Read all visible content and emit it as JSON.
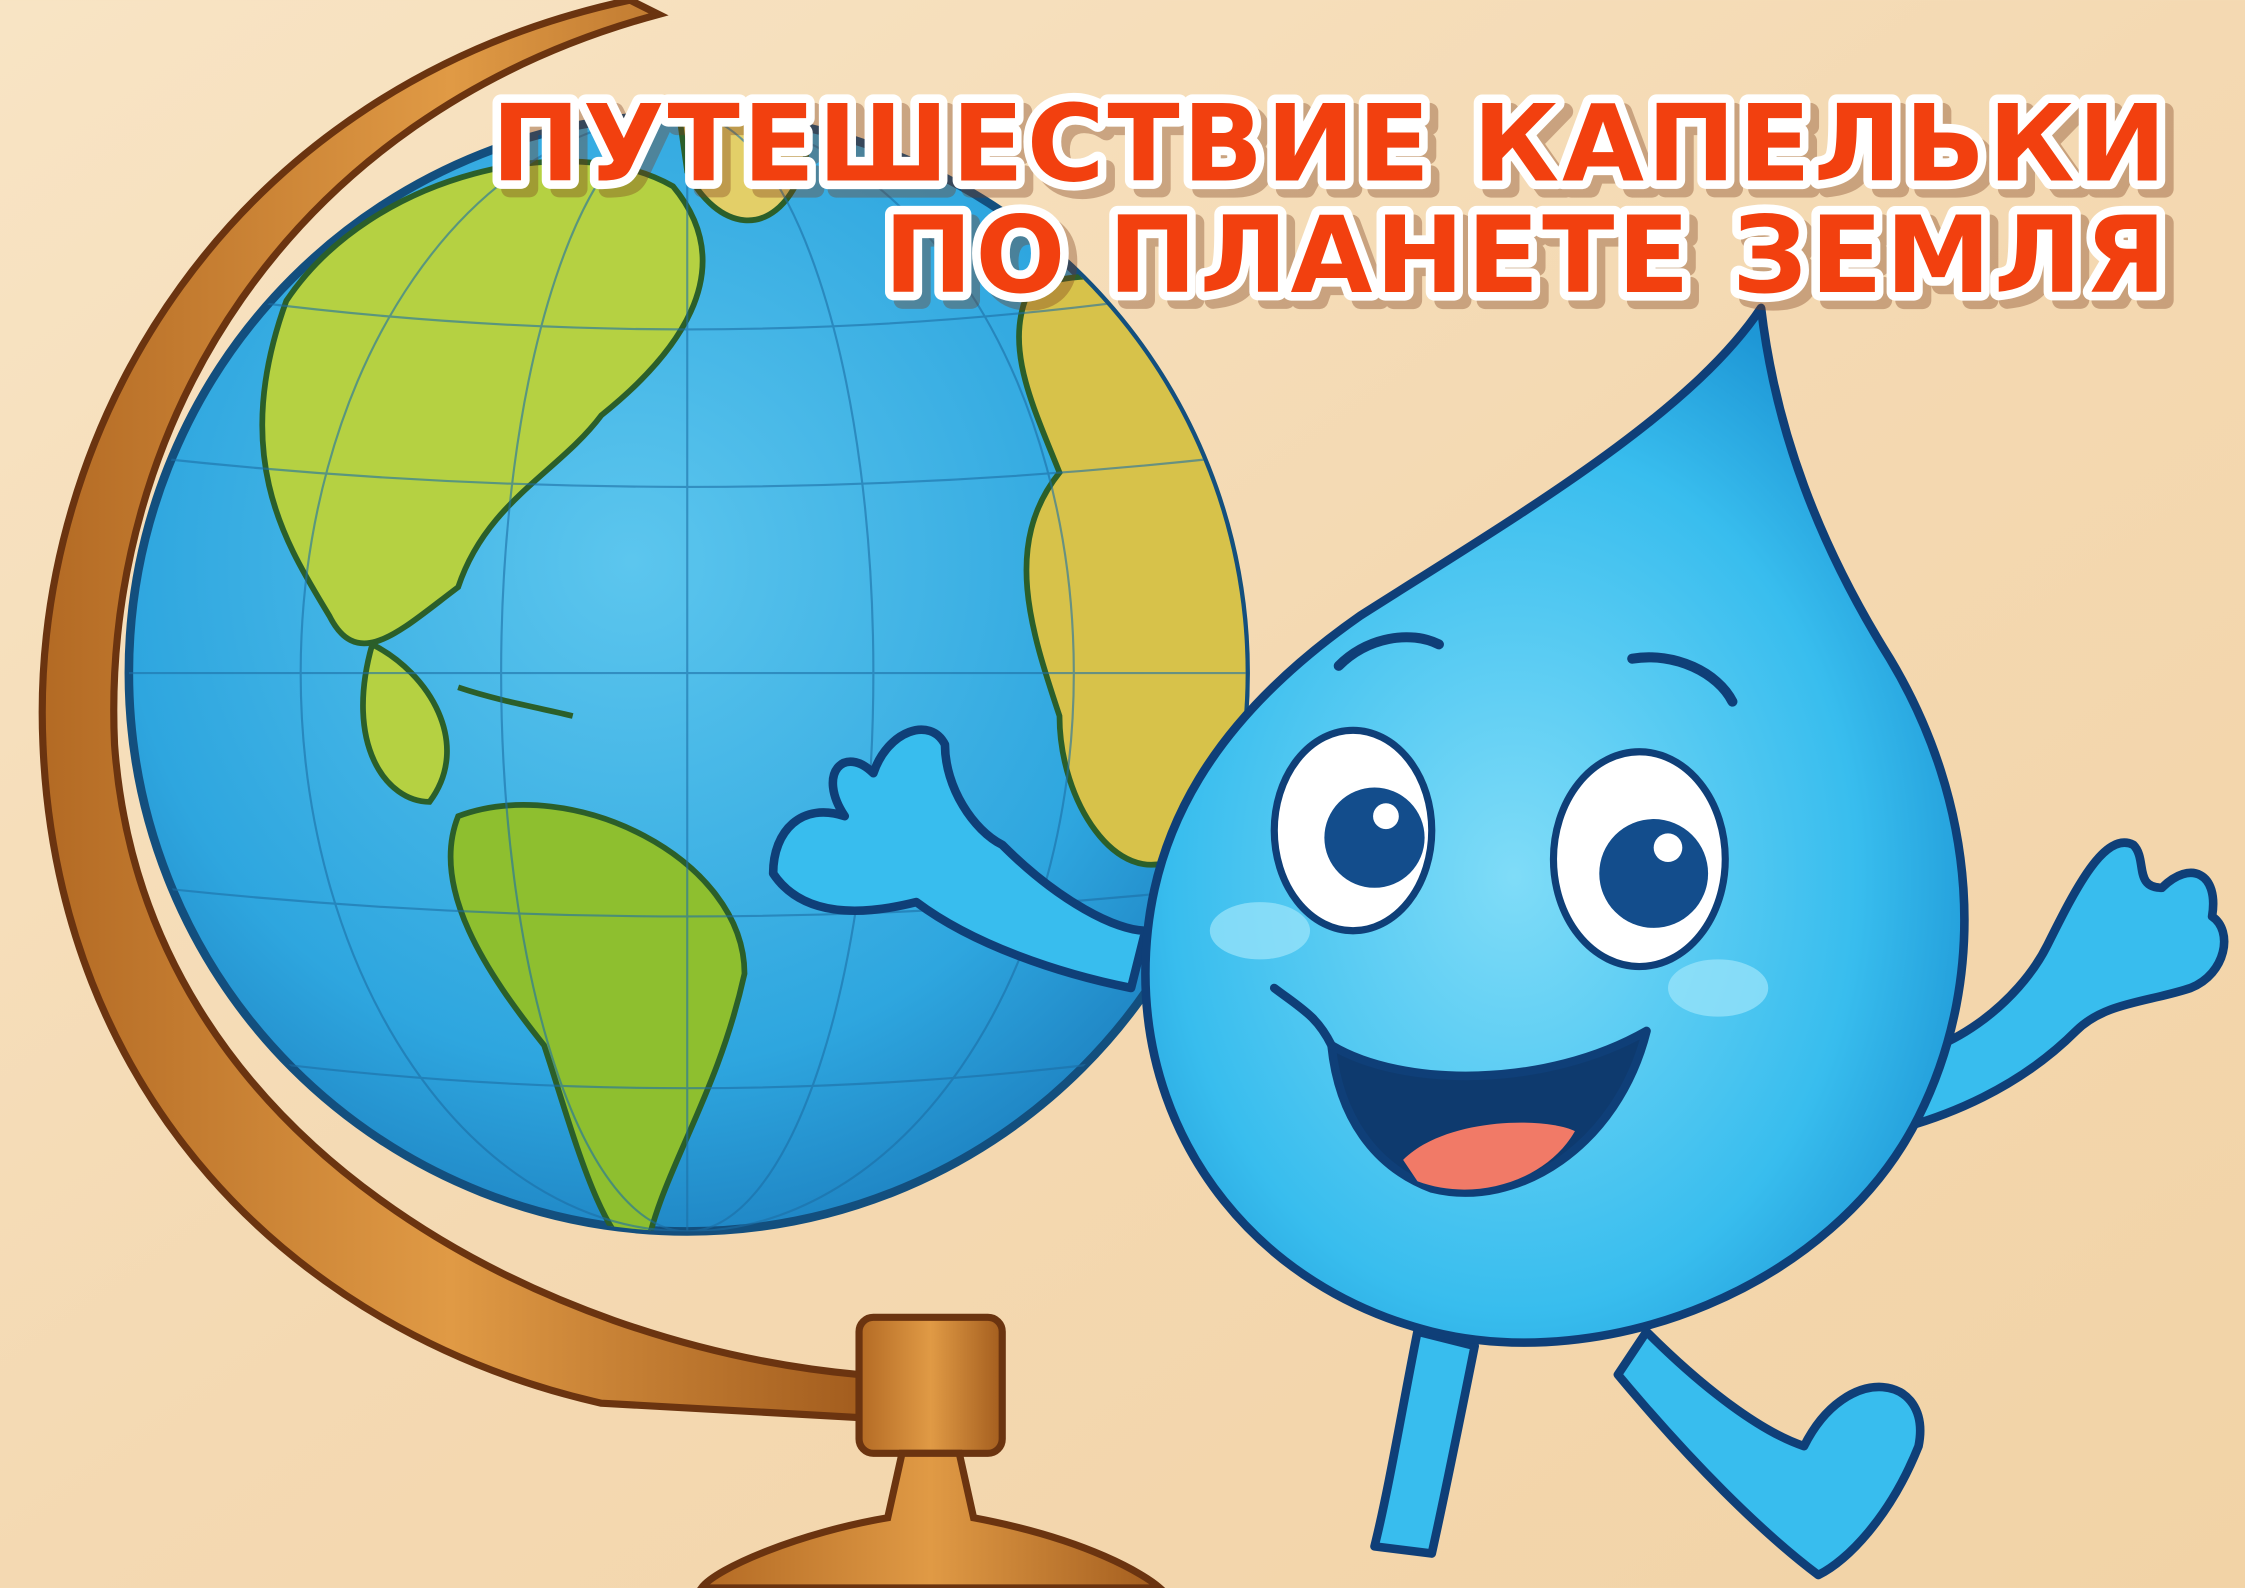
{
  "title": {
    "line1": "ПУТЕШЕСТВИЕ КАПЕЛЬКИ",
    "line2": "ПО ПЛАНЕТЕ ЗЕМЛЯ"
  }
}
